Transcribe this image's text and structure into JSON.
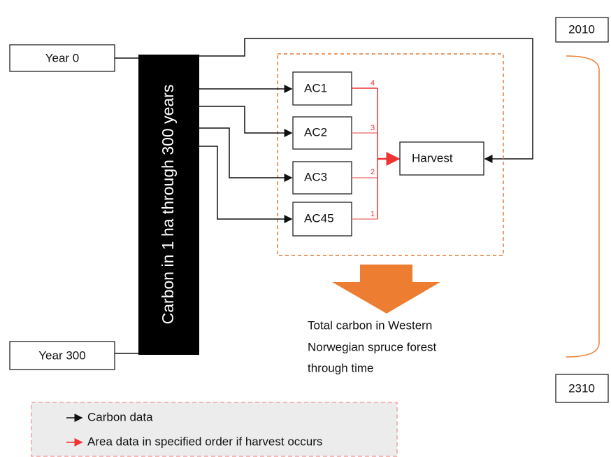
{
  "years": {
    "start": "Year 0",
    "end": "Year 300"
  },
  "central_bar": "Carbon in 1 ha through 300 years",
  "nodes": [
    {
      "label": "AC1",
      "order": 4
    },
    {
      "label": "AC2",
      "order": 3
    },
    {
      "label": "AC3",
      "order": 2
    },
    {
      "label": "AC45",
      "order": 1
    }
  ],
  "harvest": "Harvest",
  "output": [
    "Total carbon in Western",
    "Norwegian spruce forest",
    "through time"
  ],
  "timeline": {
    "start": "2010",
    "end": "2310"
  },
  "legend": [
    "Carbon data",
    "Area data in specified order if harvest occurs"
  ]
}
